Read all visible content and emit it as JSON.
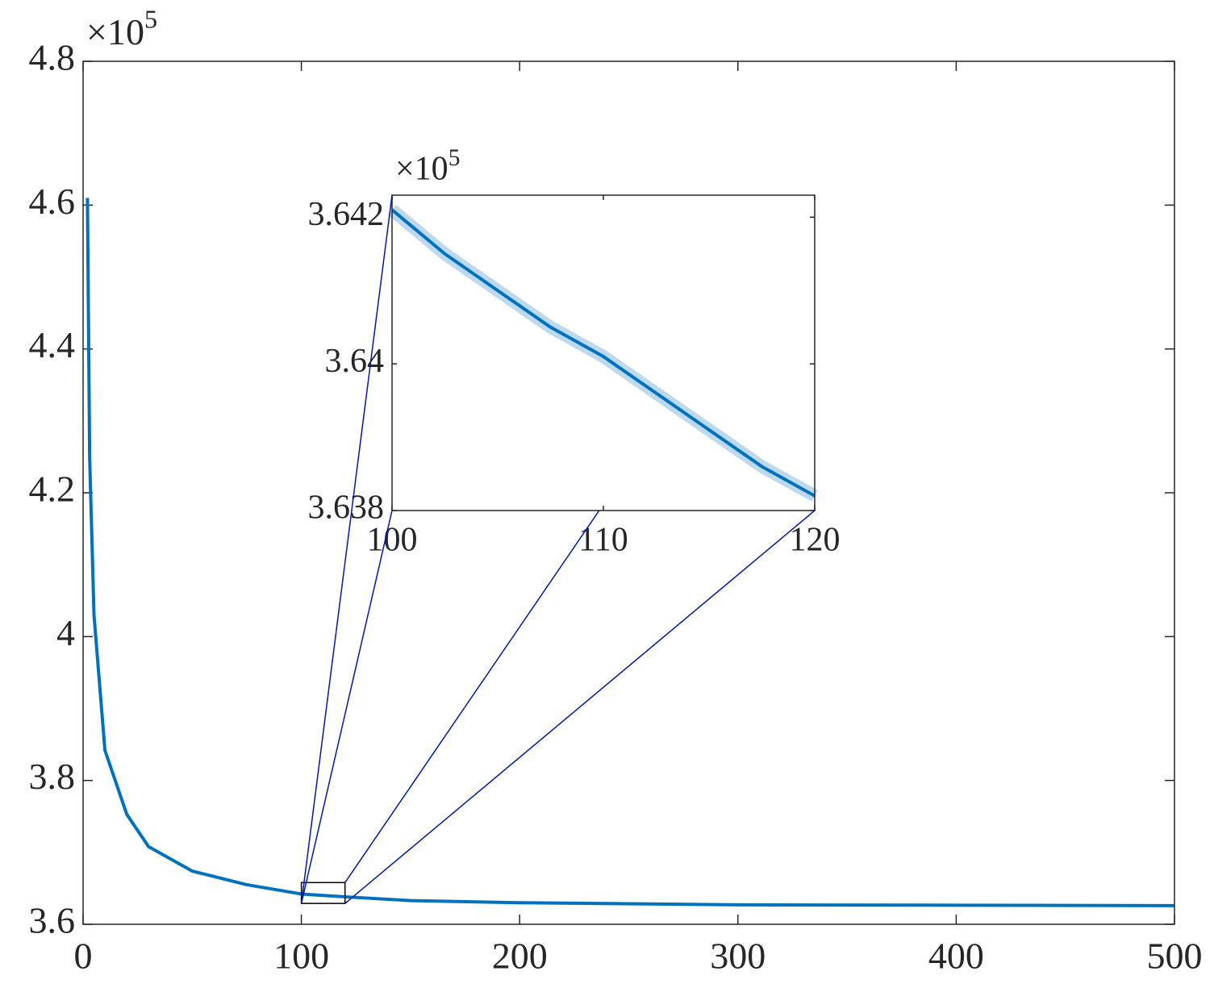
{
  "chart_data": [
    {
      "type": "line",
      "y_multiplier": "×10",
      "y_multiplier_exponent": "5",
      "x": [
        2,
        3,
        5,
        10,
        20,
        30,
        50,
        75,
        100,
        110,
        120,
        150,
        200,
        300,
        400,
        500
      ],
      "series": [
        {
          "color": "#0072bd",
          "values": [
            4.61,
            4.25,
            4.03,
            3.842,
            3.753,
            3.708,
            3.674,
            3.655,
            3.6421,
            3.6401,
            3.6382,
            3.633,
            3.63,
            3.627,
            3.6265,
            3.626
          ]
        }
      ],
      "xlim": [
        0,
        500
      ],
      "xticks": [
        0,
        100,
        200,
        300,
        400,
        500
      ],
      "ylim": [
        3.6,
        4.8
      ],
      "yticks": [
        3.6,
        3.8,
        4,
        4.2,
        4.4,
        4.6,
        4.8
      ],
      "zoom_box": {
        "xlim": [
          100,
          120
        ],
        "ylim": [
          3.629,
          3.658
        ]
      }
    },
    {
      "type": "line",
      "y_multiplier": "×10",
      "y_multiplier_exponent": "5",
      "x": [
        100,
        102.5,
        105,
        107.5,
        110,
        112.5,
        115,
        117.5,
        120
      ],
      "series": [
        {
          "color": "#0072bd",
          "band_color": "#bcd9ef",
          "values": [
            3.6421,
            3.6415,
            3.641,
            3.6405,
            3.6401,
            3.6396,
            3.6391,
            3.6386,
            3.6382
          ]
        }
      ],
      "xlim": [
        100,
        120
      ],
      "xticks": [
        100,
        110,
        120
      ],
      "ylim": [
        3.638,
        3.6423
      ],
      "yticks": [
        3.638,
        3.64,
        3.642
      ]
    }
  ]
}
